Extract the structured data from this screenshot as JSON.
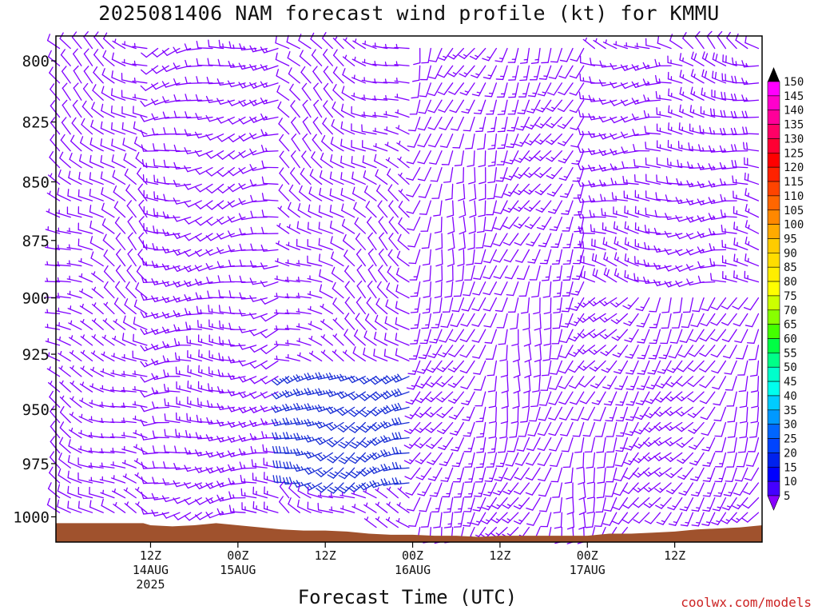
{
  "title": "2025081406 NAM forecast wind profile (kt) for KMMU",
  "xlabel": "Forecast Time (UTC)",
  "credit": "coolwx.com/models",
  "colors": {
    "terrain": "#a0522d",
    "barb_default": "#8000ff",
    "barb_strong": "#1a2fd6",
    "credit": "#cc2222"
  },
  "chart_data": {
    "type": "wind-barb-profile",
    "ylim": [
      1012,
      790
    ],
    "yticks": [
      "800",
      "825",
      "850",
      "875",
      "900",
      "925",
      "950",
      "975",
      "1000"
    ],
    "xticks": [
      {
        "time": "2025-08-14T12Z",
        "lines": [
          "12Z",
          "14AUG",
          "2025"
        ]
      },
      {
        "time": "2025-08-15T00Z",
        "lines": [
          "00Z",
          "15AUG"
        ]
      },
      {
        "time": "2025-08-15T12Z",
        "lines": [
          "12Z"
        ]
      },
      {
        "time": "2025-08-16T00Z",
        "lines": [
          "00Z",
          "16AUG"
        ]
      },
      {
        "time": "2025-08-16T12Z",
        "lines": [
          "12Z"
        ]
      },
      {
        "time": "2025-08-17T00Z",
        "lines": [
          "00Z",
          "17AUG"
        ]
      },
      {
        "time": "2025-08-17T12Z",
        "lines": [
          "12Z"
        ]
      }
    ],
    "colorbar": {
      "labels": [
        "150",
        "145",
        "140",
        "135",
        "130",
        "125",
        "120",
        "115",
        "110",
        "105",
        "100",
        "95",
        "90",
        "85",
        "80",
        "75",
        "70",
        "65",
        "60",
        "55",
        "50",
        "45",
        "40",
        "35",
        "30",
        "25",
        "20",
        "15",
        "10",
        "5"
      ],
      "colors": [
        "#ff00ff",
        "#ff00cc",
        "#ff0099",
        "#ff0066",
        "#ff0033",
        "#ff0000",
        "#ff2200",
        "#ff4400",
        "#ff6600",
        "#ff8800",
        "#ffaa00",
        "#ffcc00",
        "#ffdd00",
        "#ffee00",
        "#ffff00",
        "#ccff00",
        "#88ff00",
        "#44ff00",
        "#00ff44",
        "#00ff88",
        "#00ffcc",
        "#00ffee",
        "#00ccff",
        "#0099ff",
        "#0066ff",
        "#0044ff",
        "#0022ee",
        "#0000ff",
        "#4400ff",
        "#8800ff"
      ]
    },
    "surface_pressure": [
      {
        "t": 0,
        "p": 1003
      },
      {
        "t": 5,
        "p": 1003
      },
      {
        "t": 6,
        "p": 1004
      },
      {
        "t": 9,
        "p": 1004.5
      },
      {
        "t": 12,
        "p": 1004
      },
      {
        "t": 15,
        "p": 1003
      },
      {
        "t": 18,
        "p": 1004
      },
      {
        "t": 21,
        "p": 1005
      },
      {
        "t": 24,
        "p": 1006
      },
      {
        "t": 27,
        "p": 1006.5
      },
      {
        "t": 30,
        "p": 1006.5
      },
      {
        "t": 33,
        "p": 1007
      },
      {
        "t": 36,
        "p": 1008
      },
      {
        "t": 39,
        "p": 1008.5
      },
      {
        "t": 42,
        "p": 1008.5
      },
      {
        "t": 45,
        "p": 1009
      },
      {
        "t": 48,
        "p": 1009
      },
      {
        "t": 51,
        "p": 1009.5
      },
      {
        "t": 54,
        "p": 1009
      },
      {
        "t": 57,
        "p": 1009
      },
      {
        "t": 60,
        "p": 1009
      },
      {
        "t": 63,
        "p": 1009
      },
      {
        "t": 66,
        "p": 1009
      },
      {
        "t": 69,
        "p": 1008
      },
      {
        "t": 72,
        "p": 1008
      },
      {
        "t": 75,
        "p": 1007.5
      },
      {
        "t": 78,
        "p": 1007
      },
      {
        "t": 81,
        "p": 1006
      },
      {
        "t": 84,
        "p": 1005.5
      },
      {
        "t": 87,
        "p": 1005
      },
      {
        "t": 90,
        "p": 1004
      }
    ],
    "grid": {
      "t_start": -6.5,
      "t_step": 1.5,
      "t_end": 90,
      "p_start": 795,
      "p_step": 7,
      "p_end": 1012
    },
    "regimes": [
      {
        "name": "left-northwesterly",
        "t": [
          -7,
          6
        ],
        "dir": 300,
        "speed": 8
      },
      {
        "name": "early-westerly",
        "t": [
          6,
          24
        ],
        "dir": 260,
        "speed": 12
      },
      {
        "name": "lowlevel-jet",
        "t": [
          24,
          42
        ],
        "p": [
          930,
          990
        ],
        "dir": 250,
        "speed": 27
      },
      {
        "name": "mid-southerly",
        "t": [
          42,
          66
        ],
        "dir": 200,
        "speed": 12
      },
      {
        "name": "upper-northerly",
        "t": [
          66,
          90
        ],
        "p": [
          800,
          900
        ],
        "dir": 275,
        "speed": 15
      },
      {
        "name": "lower-southerly",
        "t": [
          66,
          90
        ],
        "p": [
          900,
          1010
        ],
        "dir": 210,
        "speed": 12
      }
    ]
  }
}
